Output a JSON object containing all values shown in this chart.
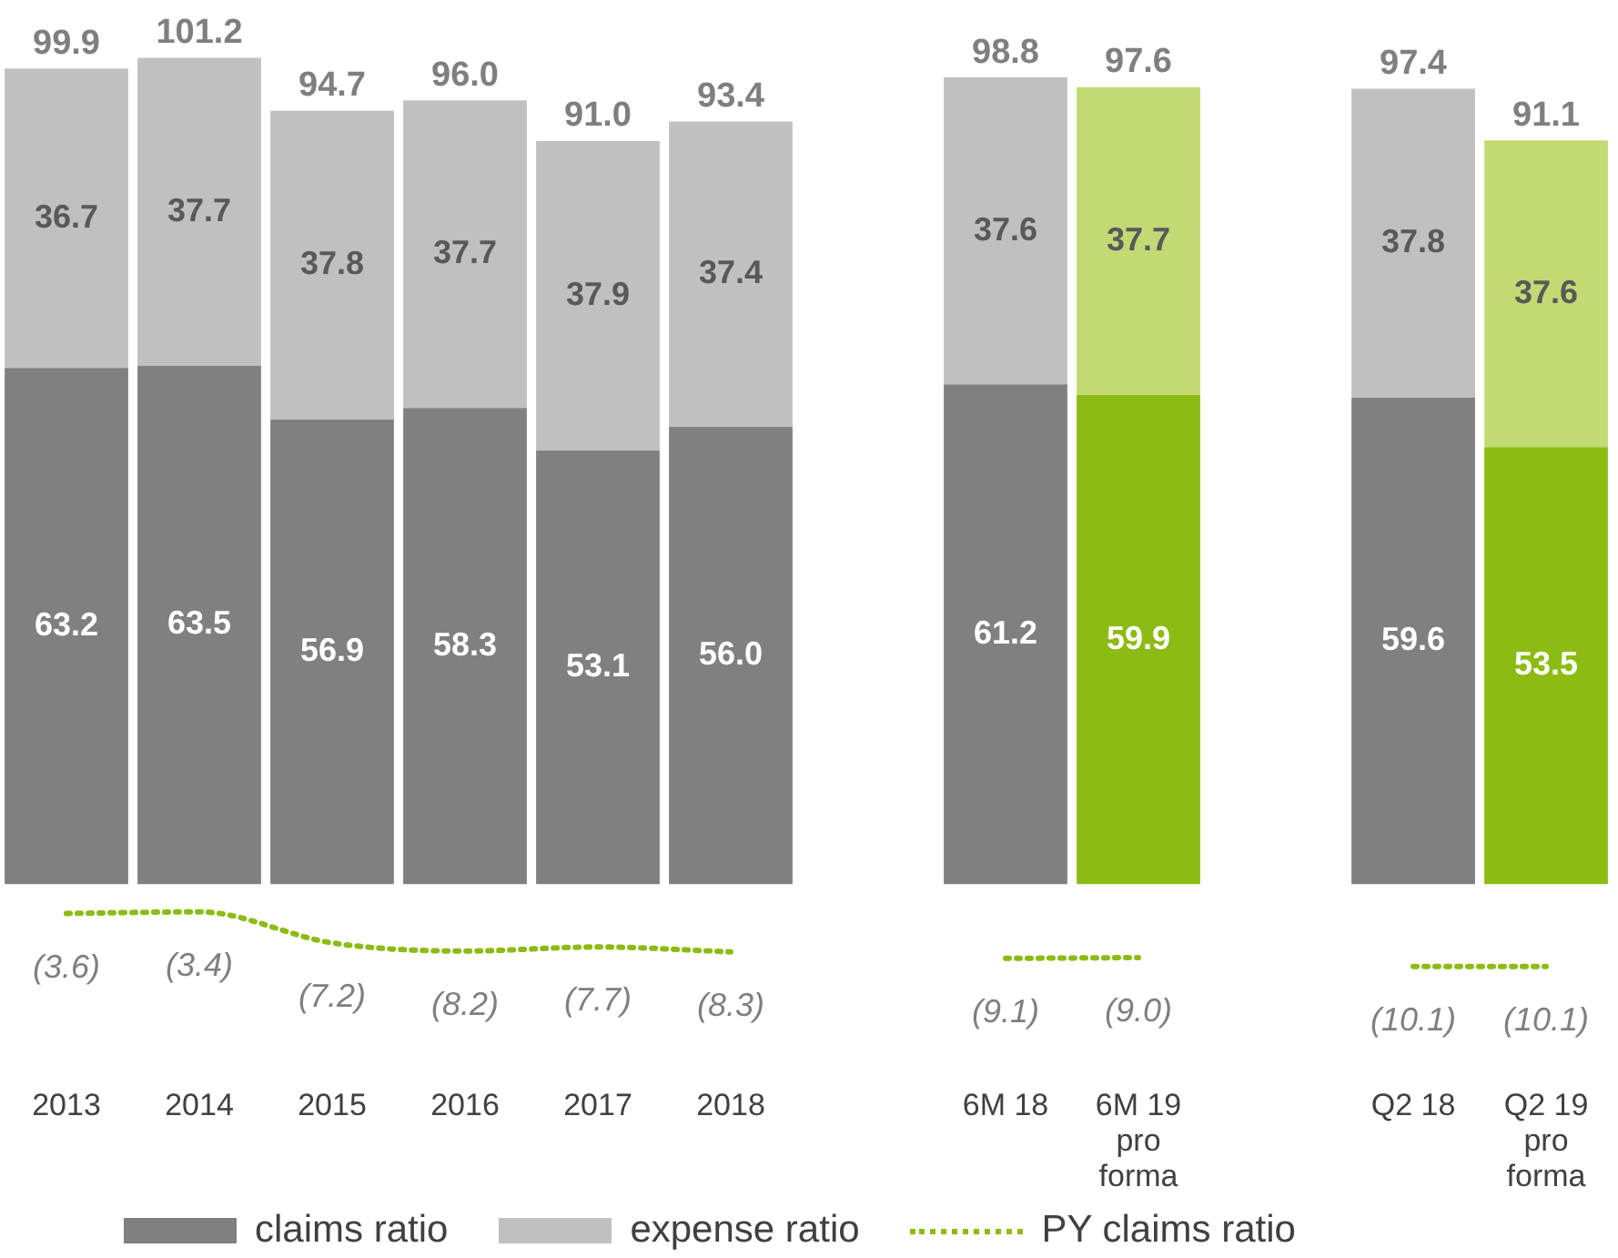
{
  "chart_data": [
    {
      "type": "bar",
      "stacked": true,
      "categories": [
        "2013",
        "2014",
        "2015",
        "2016",
        "2017",
        "2018"
      ],
      "grid": false,
      "tick_labels": "x",
      "legend": "bottom",
      "totals": [
        "99.9",
        "101.2",
        "94.7",
        "96.0",
        "91.0",
        "93.4"
      ],
      "series": [
        {
          "name": "claims ratio",
          "color": "#808080",
          "values": [
            63.2,
            63.5,
            56.9,
            58.3,
            53.1,
            56.0
          ],
          "value_labels": [
            "63.2",
            "63.5",
            "56.9",
            "58.3",
            "53.1",
            "56.0"
          ]
        },
        {
          "name": "expense ratio",
          "color": "#c0c0c0",
          "values": [
            36.7,
            37.7,
            37.8,
            37.7,
            37.9,
            37.4
          ],
          "value_labels": [
            "36.7",
            "37.7",
            "37.8",
            "37.7",
            "37.9",
            "37.4"
          ]
        },
        {
          "name": "PY claims ratio",
          "type": "line",
          "line_style": "dotted",
          "marker": "none",
          "color": "#8cbb13",
          "values": [
            -3.6,
            -3.4,
            -7.2,
            -8.2,
            -7.7,
            -8.3
          ],
          "value_labels": [
            "(3.6)",
            "(3.4)",
            "(7.2)",
            "(8.2)",
            "(7.7)",
            "(8.3)"
          ]
        }
      ]
    },
    {
      "type": "bar",
      "stacked": true,
      "categories": [
        "6M 18",
        "6M 19 pro forma"
      ],
      "grid": false,
      "tick_labels": "x",
      "totals": [
        "98.8",
        "97.6"
      ],
      "series": [
        {
          "colors": [
            "#808080",
            "#8cbb13"
          ],
          "values": [
            61.2,
            59.9
          ],
          "value_labels": [
            "61.2",
            "59.9"
          ]
        },
        {
          "colors": [
            "#c0c0c0",
            "#c3da74"
          ],
          "values": [
            37.6,
            37.7
          ],
          "value_labels": [
            "37.6",
            "37.7"
          ]
        },
        {
          "type": "line",
          "line_style": "dotted",
          "marker": "none",
          "color": "#8cbb13",
          "values": [
            -9.1,
            -9.0
          ],
          "value_labels": [
            "(9.1)",
            "(9.0)"
          ]
        }
      ]
    },
    {
      "type": "bar",
      "stacked": true,
      "categories": [
        "Q2 18",
        "Q2 19 pro forma"
      ],
      "grid": false,
      "tick_labels": "x",
      "totals": [
        "97.4",
        "91.1"
      ],
      "series": [
        {
          "colors": [
            "#808080",
            "#8cbb13"
          ],
          "values": [
            59.6,
            53.5
          ],
          "value_labels": [
            "59.6",
            "53.5"
          ]
        },
        {
          "colors": [
            "#c0c0c0",
            "#c3da74"
          ],
          "values": [
            37.8,
            37.6
          ],
          "value_labels": [
            "37.8",
            "37.6"
          ]
        },
        {
          "type": "line",
          "line_style": "dotted",
          "marker": "none",
          "color": "#8cbb13",
          "values": [
            -10.1,
            -10.1
          ],
          "value_labels": [
            "(10.1)",
            "(10.1)"
          ]
        }
      ]
    }
  ]
}
